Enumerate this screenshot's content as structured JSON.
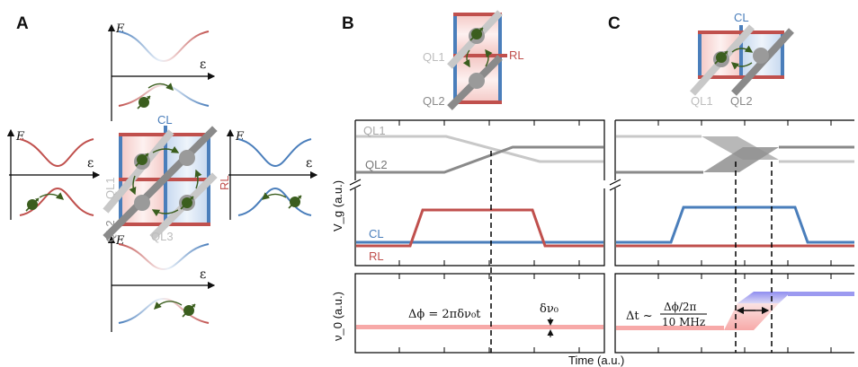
{
  "panels": {
    "a": {
      "letter": "A"
    },
    "b": {
      "letter": "B"
    },
    "c": {
      "letter": "C"
    }
  },
  "labels": {
    "energy": "E",
    "detuning": "ε",
    "cl": "CL",
    "rl": "RL",
    "ql1": "QL1",
    "ql2": "QL2",
    "ql3": "QL3",
    "voltage_axis": "V_g (a.u.)",
    "freq_axis": "ν_0 (a.u.)",
    "time_axis": "Time (a.u.)"
  },
  "equations": {
    "phase": "Δϕ = 2πδν₀t",
    "delta_nu": "δν₀",
    "dt_lhs": "Δt ~",
    "dt_num": "Δϕ/2π",
    "dt_den": "10 MHz"
  },
  "colors": {
    "red": "#c0504d",
    "blue": "#4a7ebb",
    "light_gray": "#c8c8c8",
    "dark_gray": "#8a8a8a",
    "electron": "#3b5e1e"
  }
}
